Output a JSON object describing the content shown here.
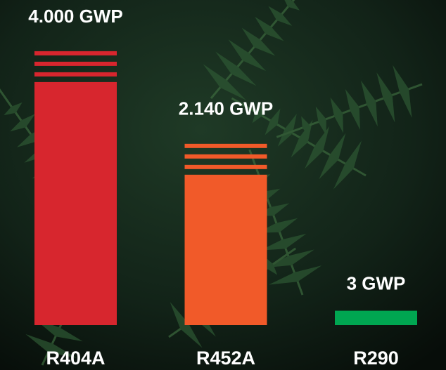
{
  "chart_data": {
    "type": "bar",
    "categories": [
      "R404A",
      "R452A",
      "R290"
    ],
    "values": [
      4000,
      2140,
      3
    ],
    "value_labels": [
      "4.000 GWP",
      "2.140 GWP",
      "3 GWP"
    ],
    "colors": [
      "#d7262e",
      "#f15a29",
      "#00a651"
    ]
  }
}
